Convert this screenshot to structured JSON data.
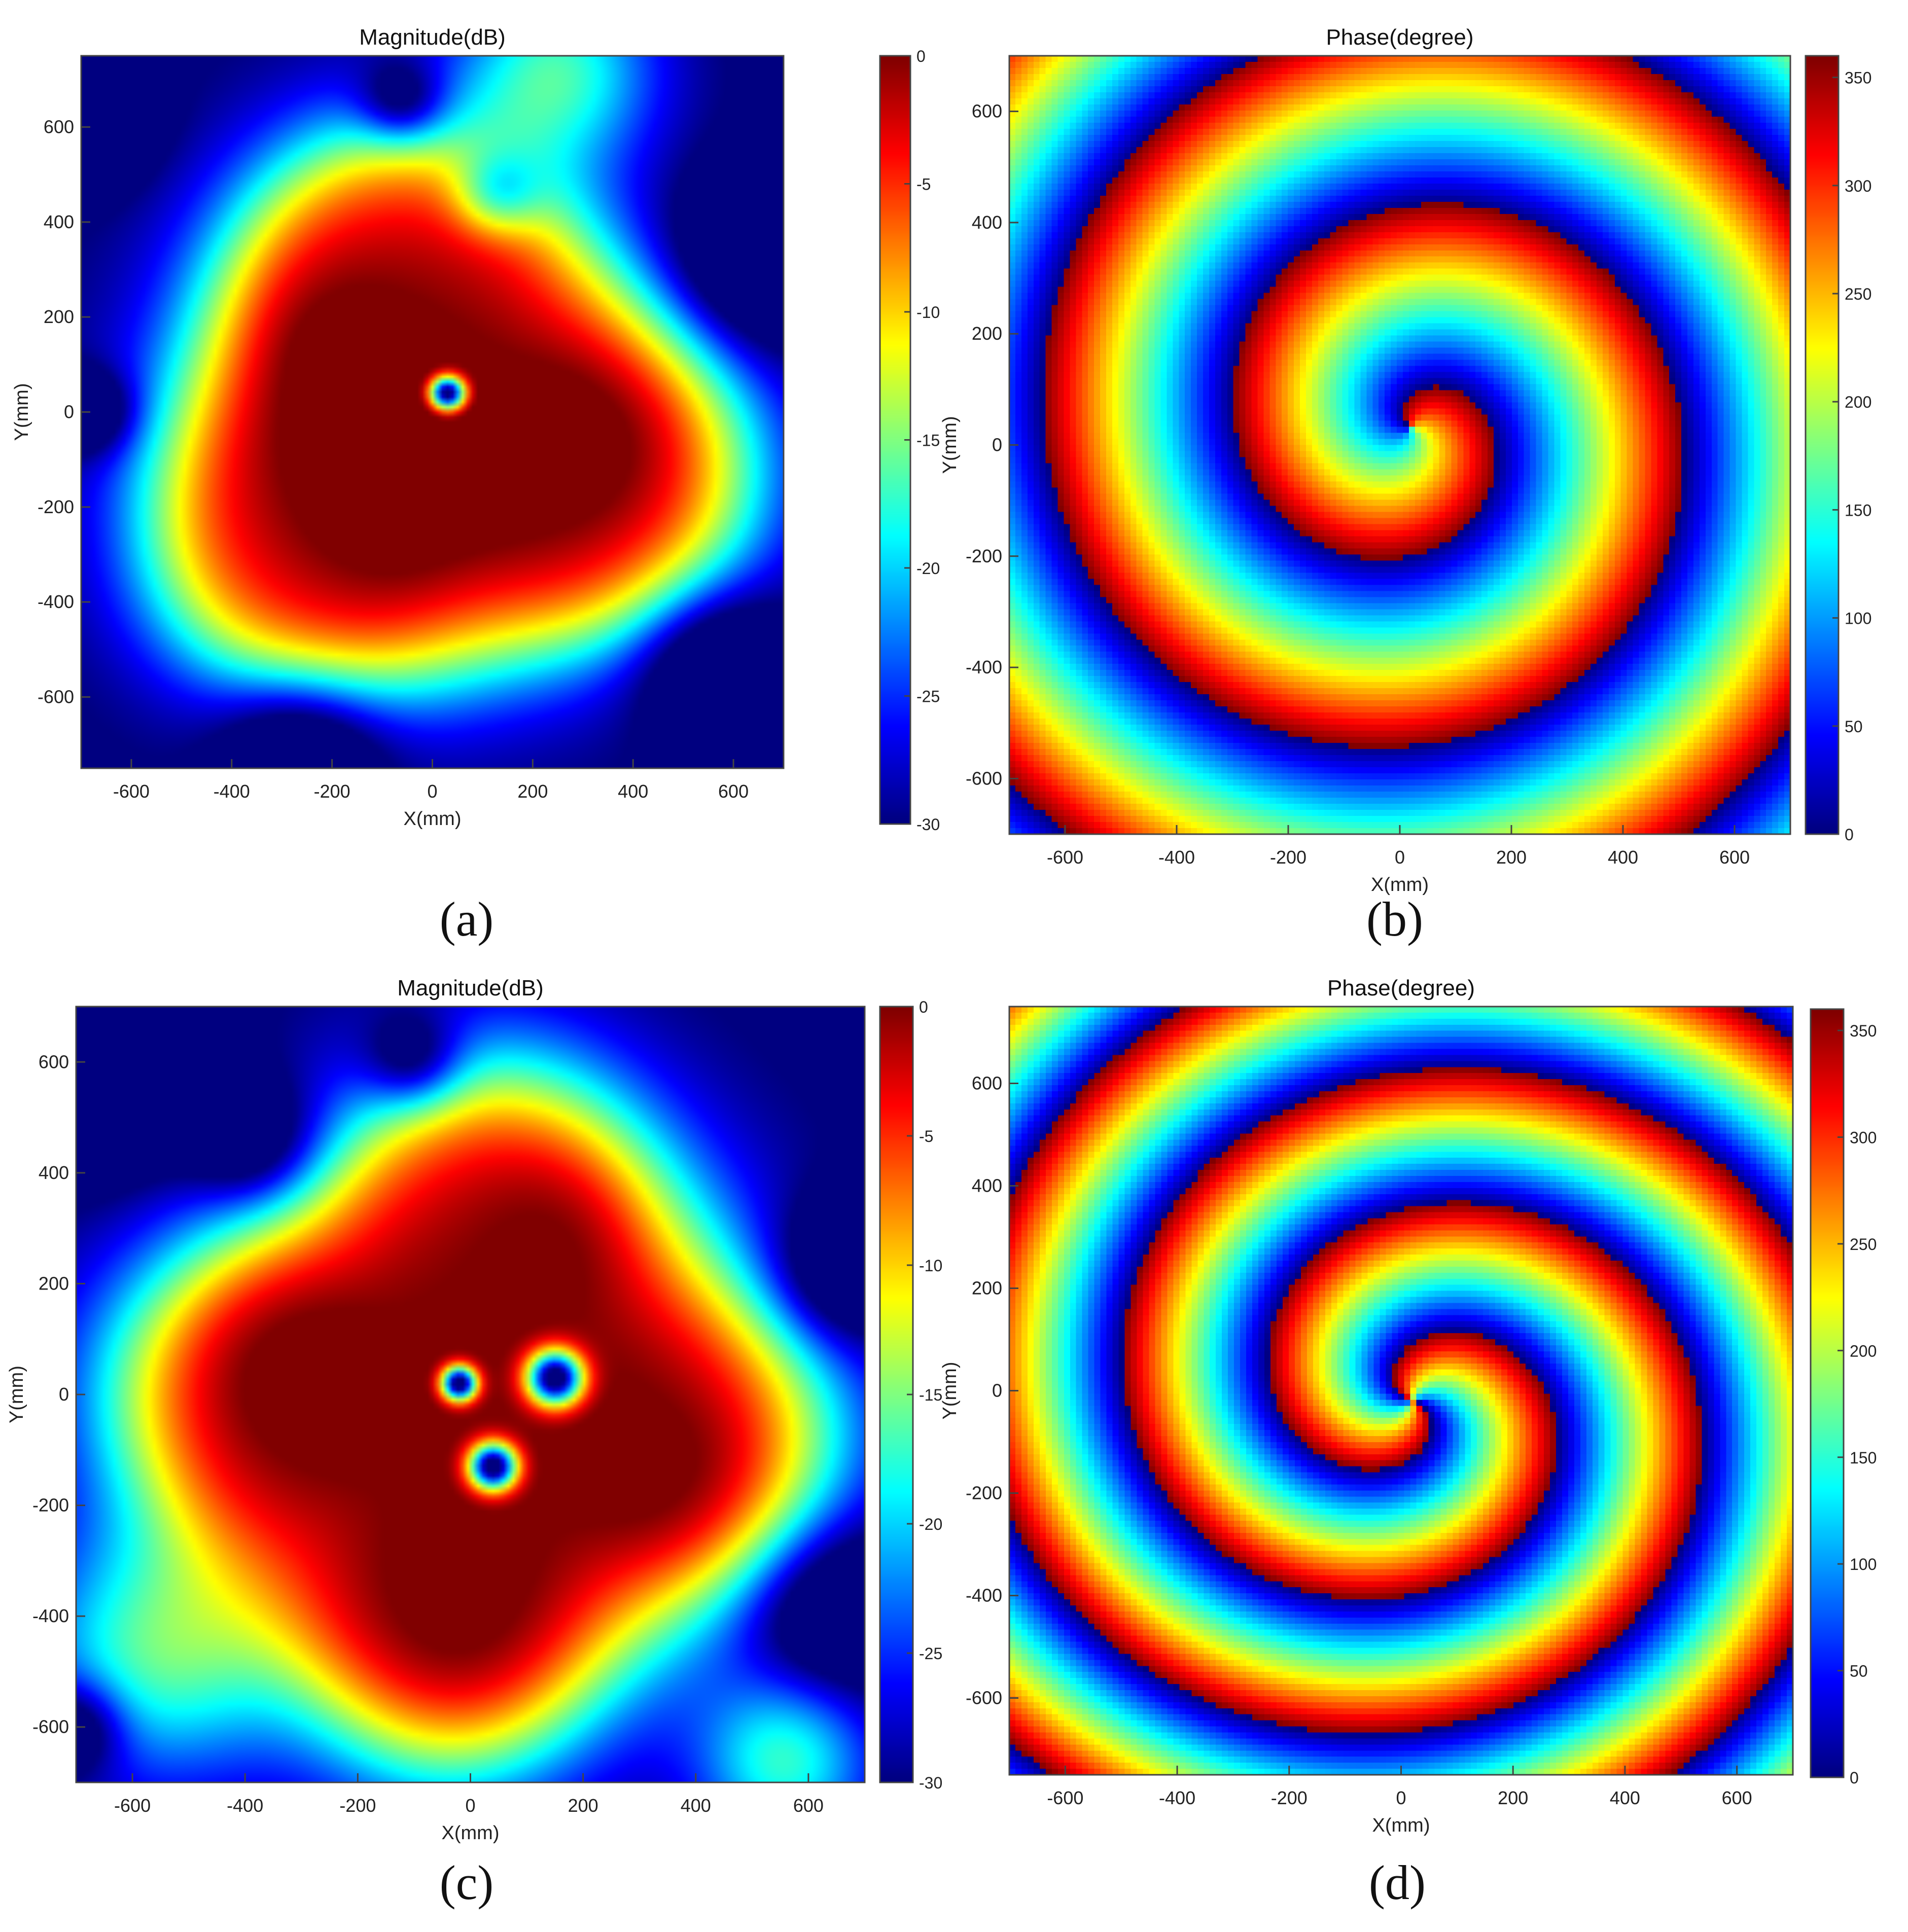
{
  "figure": {
    "panels": [
      {
        "caption": "(a)"
      },
      {
        "caption": "(b)"
      },
      {
        "caption": "(c)"
      },
      {
        "caption": "(d)"
      }
    ]
  },
  "chart_data": [
    {
      "type": "heatmap",
      "title": "Magnitude(dB)",
      "xlabel": "X(mm)",
      "ylabel": "Y(mm)",
      "xlim": [
        -700,
        700
      ],
      "ylim": [
        -750,
        750
      ],
      "xticks": [
        -600,
        -400,
        -200,
        0,
        200,
        400,
        600
      ],
      "yticks": [
        -600,
        -400,
        -200,
        0,
        200,
        400,
        600
      ],
      "colorbar": {
        "range": [
          -30,
          0
        ],
        "ticks": [
          0,
          -5,
          -10,
          -15,
          -20,
          -25,
          -30
        ]
      },
      "colormap": "jet",
      "field": {
        "kind": "magnitude_db",
        "beam": {
          "center": [
            0,
            -40
          ],
          "radius": 560,
          "lobes": 3,
          "lobe_amp": 0.12,
          "lobe_phase": 0.9
        },
        "hotspots": [
          [
            -230,
            110
          ],
          [
            -60,
            -180
          ],
          [
            300,
            -60
          ]
        ],
        "nulls": [
          [
            30,
            40,
            25
          ]
        ],
        "dark_spots": [
          [
            -700,
            620,
            90
          ],
          [
            -60,
            650,
            60
          ],
          [
            640,
            310,
            130
          ],
          [
            560,
            -520,
            110
          ],
          [
            -680,
            0,
            60
          ],
          [
            -260,
            -700,
            110
          ],
          [
            130,
            460,
            60
          ]
        ],
        "warm_spots": [
          [
            250,
            720,
            140
          ]
        ]
      }
    },
    {
      "type": "heatmap",
      "title": "Phase(degree)",
      "xlabel": "X(mm)",
      "ylabel": "Y(mm)",
      "xlim": [
        -700,
        700
      ],
      "ylim": [
        -700,
        700
      ],
      "xticks": [
        -600,
        -400,
        -200,
        0,
        200,
        400,
        600
      ],
      "yticks": [
        -600,
        -400,
        -200,
        0,
        200,
        400,
        600
      ],
      "colorbar": {
        "range": [
          0,
          360
        ],
        "ticks": [
          0,
          50,
          100,
          150,
          200,
          250,
          300,
          350
        ]
      },
      "colormap": "jet",
      "field": {
        "kind": "phase_deg",
        "center": [
          20,
          30
        ],
        "topological_charge": 1,
        "radial_wavenumber": 1.05,
        "offset_deg": 210,
        "pixel": 12
      }
    },
    {
      "type": "heatmap",
      "title": "Magnitude(dB)",
      "xlabel": "X(mm)",
      "ylabel": "Y(mm)",
      "xlim": [
        -700,
        700
      ],
      "ylim": [
        -700,
        700
      ],
      "xticks": [
        -600,
        -400,
        -200,
        0,
        200,
        400,
        600
      ],
      "yticks": [
        -600,
        -400,
        -200,
        0,
        200,
        400,
        600
      ],
      "colorbar": {
        "range": [
          -30,
          0
        ],
        "ticks": [
          0,
          -5,
          -10,
          -15,
          -20,
          -25,
          -30
        ]
      },
      "colormap": "jet",
      "field": {
        "kind": "magnitude_db",
        "beam": {
          "center": [
            0,
            -40
          ],
          "radius": 560,
          "lobes": 4,
          "lobe_amp": 0.1,
          "lobe_phase": 0.4
        },
        "hotspots": [
          [
            -330,
            60
          ],
          [
            -20,
            -450
          ],
          [
            380,
            -180
          ],
          [
            220,
            320
          ]
        ],
        "nulls": [
          [
            150,
            30,
            35
          ],
          [
            40,
            -130,
            30
          ],
          [
            -20,
            20,
            22
          ]
        ],
        "dark_spots": [
          [
            -640,
            580,
            120
          ],
          [
            -380,
            450,
            80
          ],
          [
            -100,
            600,
            60
          ],
          [
            640,
            -380,
            110
          ],
          [
            660,
            220,
            90
          ],
          [
            -700,
            -600,
            60
          ]
        ],
        "warm_spots": [
          [
            -560,
            -470,
            160
          ],
          [
            560,
            -660,
            110
          ]
        ]
      }
    },
    {
      "type": "heatmap",
      "title": "Phase(degree)",
      "xlabel": "X(mm)",
      "ylabel": "Y(mm)",
      "xlim": [
        -700,
        700
      ],
      "ylim": [
        -750,
        750
      ],
      "xticks": [
        -600,
        -400,
        -200,
        0,
        200,
        400,
        600
      ],
      "yticks": [
        -600,
        -400,
        -200,
        0,
        200,
        400,
        600
      ],
      "colorbar": {
        "range": [
          0,
          360
        ],
        "ticks": [
          0,
          50,
          100,
          150,
          200,
          250,
          300,
          350
        ]
      },
      "colormap": "jet",
      "field": {
        "kind": "phase_deg",
        "center": [
          20,
          -20
        ],
        "topological_charge": 2,
        "radial_wavenumber": 1.35,
        "offset_deg": 30,
        "pixel": 12
      }
    }
  ]
}
